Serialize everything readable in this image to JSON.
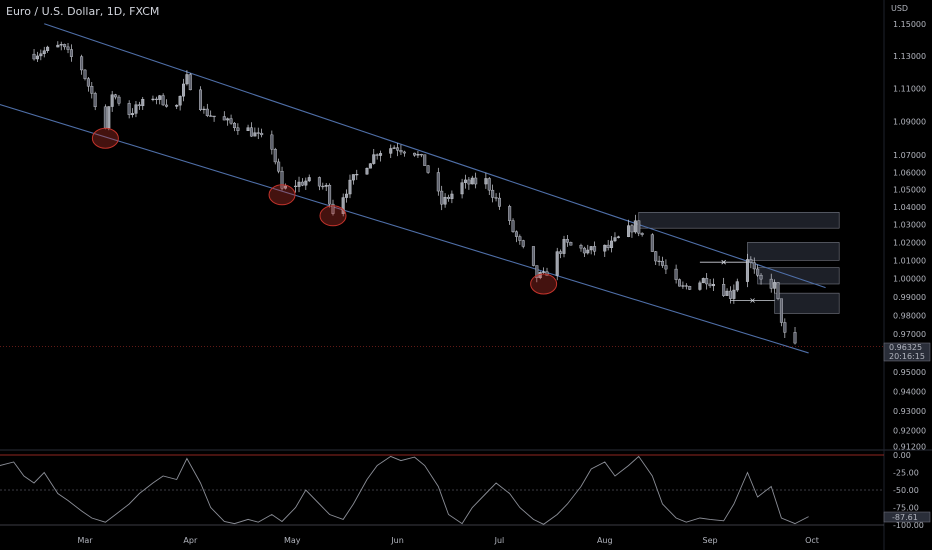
{
  "header": {
    "title": "Euro / U.S. Dollar, 1D, FXCM",
    "currency": "USD"
  },
  "price_badge": {
    "price": "0.96325",
    "countdown": "20:16:15"
  },
  "oscillator_badge": {
    "value": "-87.61"
  },
  "colors": {
    "background": "#000000",
    "candle": "#d1d4dc",
    "channel": "#4f6fa8",
    "zone_fill": "#2a2e39",
    "zone_border": "#787b86",
    "marker": "#c2332b",
    "oscillator_line": "#8a8d96",
    "level_zero": "#c2332b",
    "level_mid": "#787b86",
    "price_line": "#c2332b"
  },
  "chart_data": [
    {
      "type": "candlestick",
      "title": "Euro / U.S. Dollar, 1D, FXCM",
      "ylabel": "USD",
      "y_scale": "log",
      "yticks": [
        "1.15000",
        "1.13000",
        "1.11000",
        "1.09000",
        "1.07000",
        "1.06000",
        "1.05000",
        "1.04000",
        "1.03000",
        "1.02000",
        "1.01000",
        "1.00000",
        "0.99000",
        "0.98000",
        "0.97000",
        "0.95000",
        "0.94000",
        "0.93000",
        "0.92000",
        "0.91200"
      ],
      "x_tick_labels": [
        "Mar",
        "Apr",
        "May",
        "Jun",
        "Jul",
        "Aug",
        "Sep",
        "Oct"
      ],
      "x_tick_dates": [
        "2022-03-01",
        "2022-04-01",
        "2022-05-01",
        "2022-06-01",
        "2022-07-01",
        "2022-08-01",
        "2022-09-01",
        "2022-10-01"
      ],
      "ylim": [
        0.9112,
        1.16
      ],
      "close_path": [
        [
          "2022-02-14",
          1.131
        ],
        [
          "2022-02-22",
          1.136
        ],
        [
          "2022-02-28",
          1.122
        ],
        [
          "2022-03-07",
          1.086
        ],
        [
          "2022-03-09",
          1.107
        ],
        [
          "2022-03-14",
          1.095
        ],
        [
          "2022-03-21",
          1.105
        ],
        [
          "2022-03-28",
          1.099
        ],
        [
          "2022-03-31",
          1.116
        ],
        [
          "2022-04-05",
          1.096
        ],
        [
          "2022-04-11",
          1.09
        ],
        [
          "2022-04-18",
          1.085
        ],
        [
          "2022-04-25",
          1.075
        ],
        [
          "2022-04-28",
          1.05
        ],
        [
          "2022-05-05",
          1.055
        ],
        [
          "2022-05-11",
          1.051
        ],
        [
          "2022-05-13",
          1.038
        ],
        [
          "2022-05-19",
          1.056
        ],
        [
          "2022-05-26",
          1.072
        ],
        [
          "2022-05-31",
          1.075
        ],
        [
          "2022-06-06",
          1.072
        ],
        [
          "2022-06-09",
          1.065
        ],
        [
          "2022-06-14",
          1.042
        ],
        [
          "2022-06-20",
          1.053
        ],
        [
          "2022-06-27",
          1.055
        ],
        [
          "2022-07-04",
          1.03
        ],
        [
          "2022-07-12",
          1.001
        ],
        [
          "2022-07-14",
          1.001
        ],
        [
          "2022-07-20",
          1.019
        ],
        [
          "2022-07-27",
          1.015
        ],
        [
          "2022-08-02",
          1.017
        ],
        [
          "2022-08-10",
          1.03
        ],
        [
          "2022-08-15",
          1.015
        ],
        [
          "2022-08-23",
          0.994
        ],
        [
          "2022-08-31",
          1.0
        ],
        [
          "2022-09-07",
          0.991
        ],
        [
          "2022-09-12",
          1.012
        ],
        [
          "2022-09-15",
          0.999
        ],
        [
          "2022-09-20",
          0.996
        ],
        [
          "2022-09-23",
          0.969
        ],
        [
          "2022-09-26",
          0.963
        ]
      ],
      "channel_upper": {
        "from": [
          "2022-02-17",
          1.15
        ],
        "to": [
          "2022-10-05",
          0.995
        ]
      },
      "channel_lower": {
        "from": [
          "2022-02-01",
          1.102
        ],
        "to": [
          "2022-09-30",
          0.96
        ]
      },
      "circled_lows": [
        {
          "date": "2022-03-07",
          "value": 1.08
        },
        {
          "date": "2022-04-28",
          "value": 1.047
        },
        {
          "date": "2022-05-13",
          "value": 1.035
        },
        {
          "date": "2022-07-14",
          "value": 0.997
        }
      ],
      "zones": [
        {
          "from": "2022-08-11",
          "to": "2022-10-09",
          "high": 1.037,
          "low": 1.028
        },
        {
          "from": "2022-09-12",
          "to": "2022-10-09",
          "high": 1.02,
          "low": 1.01
        },
        {
          "from": "2022-09-15",
          "to": "2022-10-09",
          "high": 1.006,
          "low": 0.997
        },
        {
          "from": "2022-09-20",
          "to": "2022-10-09",
          "high": 0.992,
          "low": 0.981
        }
      ],
      "swing_marks": [
        {
          "from": "2022-08-29",
          "to": "2022-09-12",
          "value": 1.009
        },
        {
          "from": "2022-09-07",
          "to": "2022-09-20",
          "value": 0.988
        }
      ],
      "last_price": 0.96325
    },
    {
      "type": "line",
      "name": "oscillator",
      "ylim": [
        -100,
        0
      ],
      "yticks": [
        "0.00",
        "-25.00",
        "-50.00",
        "-75.00",
        "-100.00"
      ],
      "levels": [
        0,
        -50,
        -100
      ],
      "last_value": -87.61,
      "path": [
        [
          "2022-02-01",
          -5
        ],
        [
          "2022-02-04",
          -15
        ],
        [
          "2022-02-08",
          -10
        ],
        [
          "2022-02-11",
          -30
        ],
        [
          "2022-02-14",
          -40
        ],
        [
          "2022-02-17",
          -25
        ],
        [
          "2022-02-21",
          -55
        ],
        [
          "2022-02-24",
          -65
        ],
        [
          "2022-02-28",
          -80
        ],
        [
          "2022-03-03",
          -90
        ],
        [
          "2022-03-07",
          -96
        ],
        [
          "2022-03-10",
          -85
        ],
        [
          "2022-03-14",
          -70
        ],
        [
          "2022-03-17",
          -55
        ],
        [
          "2022-03-21",
          -40
        ],
        [
          "2022-03-24",
          -30
        ],
        [
          "2022-03-28",
          -35
        ],
        [
          "2022-03-31",
          -5
        ],
        [
          "2022-04-04",
          -40
        ],
        [
          "2022-04-07",
          -75
        ],
        [
          "2022-04-11",
          -95
        ],
        [
          "2022-04-14",
          -98
        ],
        [
          "2022-04-18",
          -92
        ],
        [
          "2022-04-21",
          -96
        ],
        [
          "2022-04-25",
          -85
        ],
        [
          "2022-04-28",
          -95
        ],
        [
          "2022-05-02",
          -75
        ],
        [
          "2022-05-05",
          -50
        ],
        [
          "2022-05-09",
          -70
        ],
        [
          "2022-05-12",
          -85
        ],
        [
          "2022-05-16",
          -92
        ],
        [
          "2022-05-19",
          -70
        ],
        [
          "2022-05-23",
          -35
        ],
        [
          "2022-05-26",
          -15
        ],
        [
          "2022-05-30",
          -2
        ],
        [
          "2022-06-02",
          -8
        ],
        [
          "2022-06-06",
          -3
        ],
        [
          "2022-06-09",
          -15
        ],
        [
          "2022-06-13",
          -45
        ],
        [
          "2022-06-16",
          -85
        ],
        [
          "2022-06-20",
          -98
        ],
        [
          "2022-06-23",
          -75
        ],
        [
          "2022-06-27",
          -55
        ],
        [
          "2022-06-30",
          -40
        ],
        [
          "2022-07-04",
          -55
        ],
        [
          "2022-07-07",
          -75
        ],
        [
          "2022-07-11",
          -92
        ],
        [
          "2022-07-14",
          -99
        ],
        [
          "2022-07-18",
          -85
        ],
        [
          "2022-07-21",
          -70
        ],
        [
          "2022-07-25",
          -45
        ],
        [
          "2022-07-28",
          -20
        ],
        [
          "2022-08-01",
          -10
        ],
        [
          "2022-08-04",
          -30
        ],
        [
          "2022-08-08",
          -15
        ],
        [
          "2022-08-11",
          -2
        ],
        [
          "2022-08-15",
          -30
        ],
        [
          "2022-08-18",
          -70
        ],
        [
          "2022-08-22",
          -90
        ],
        [
          "2022-08-25",
          -96
        ],
        [
          "2022-08-29",
          -90
        ],
        [
          "2022-09-01",
          -92
        ],
        [
          "2022-09-05",
          -94
        ],
        [
          "2022-09-08",
          -70
        ],
        [
          "2022-09-12",
          -25
        ],
        [
          "2022-09-15",
          -60
        ],
        [
          "2022-09-19",
          -45
        ],
        [
          "2022-09-22",
          -90
        ],
        [
          "2022-09-26",
          -98
        ],
        [
          "2022-09-30",
          -88
        ]
      ]
    }
  ]
}
